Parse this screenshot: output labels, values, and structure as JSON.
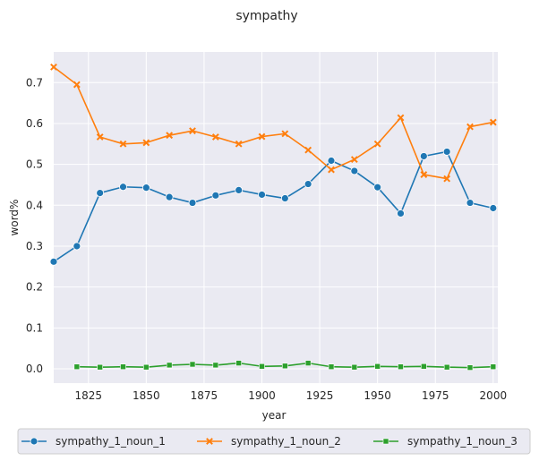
{
  "chart_data": {
    "type": "line",
    "title": "sympathy",
    "xlabel": "year",
    "ylabel": "word%",
    "xlim": [
      1810,
      2002
    ],
    "ylim": [
      -0.035,
      0.775
    ],
    "xticks": [
      1825,
      1850,
      1875,
      1900,
      1925,
      1950,
      1975,
      2000
    ],
    "yticks": [
      0.0,
      0.1,
      0.2,
      0.3,
      0.4,
      0.5,
      0.6,
      0.7
    ],
    "grid": true,
    "legend_position": "bottom",
    "series": [
      {
        "name": "sympathy_1_noun_1",
        "color": "#1f77b4",
        "marker": "circle",
        "x": [
          1810,
          1820,
          1830,
          1840,
          1850,
          1860,
          1870,
          1880,
          1890,
          1900,
          1910,
          1920,
          1930,
          1940,
          1950,
          1960,
          1970,
          1980,
          1990,
          2000
        ],
        "y": [
          0.262,
          0.3,
          0.43,
          0.445,
          0.443,
          0.42,
          0.406,
          0.424,
          0.437,
          0.426,
          0.417,
          0.452,
          0.509,
          0.484,
          0.444,
          0.38,
          0.52,
          0.531,
          0.406,
          0.393
        ]
      },
      {
        "name": "sympathy_1_noun_2",
        "color": "#ff7f0e",
        "marker": "x",
        "x": [
          1810,
          1820,
          1830,
          1840,
          1850,
          1860,
          1870,
          1880,
          1890,
          1900,
          1910,
          1920,
          1930,
          1940,
          1950,
          1960,
          1970,
          1980,
          1990,
          2000
        ],
        "y": [
          0.738,
          0.695,
          0.567,
          0.55,
          0.553,
          0.571,
          0.582,
          0.567,
          0.55,
          0.568,
          0.575,
          0.535,
          0.487,
          0.512,
          0.55,
          0.614,
          0.475,
          0.465,
          0.592,
          0.603
        ]
      },
      {
        "name": "sympathy_1_noun_3",
        "color": "#2ca02c",
        "marker": "square",
        "x": [
          1820,
          1830,
          1840,
          1850,
          1860,
          1870,
          1880,
          1890,
          1900,
          1910,
          1920,
          1930,
          1940,
          1950,
          1960,
          1970,
          1980,
          1990,
          2000
        ],
        "y": [
          0.005,
          0.004,
          0.005,
          0.004,
          0.009,
          0.011,
          0.009,
          0.014,
          0.006,
          0.007,
          0.014,
          0.005,
          0.004,
          0.006,
          0.005,
          0.006,
          0.004,
          0.003,
          0.005
        ]
      }
    ]
  }
}
